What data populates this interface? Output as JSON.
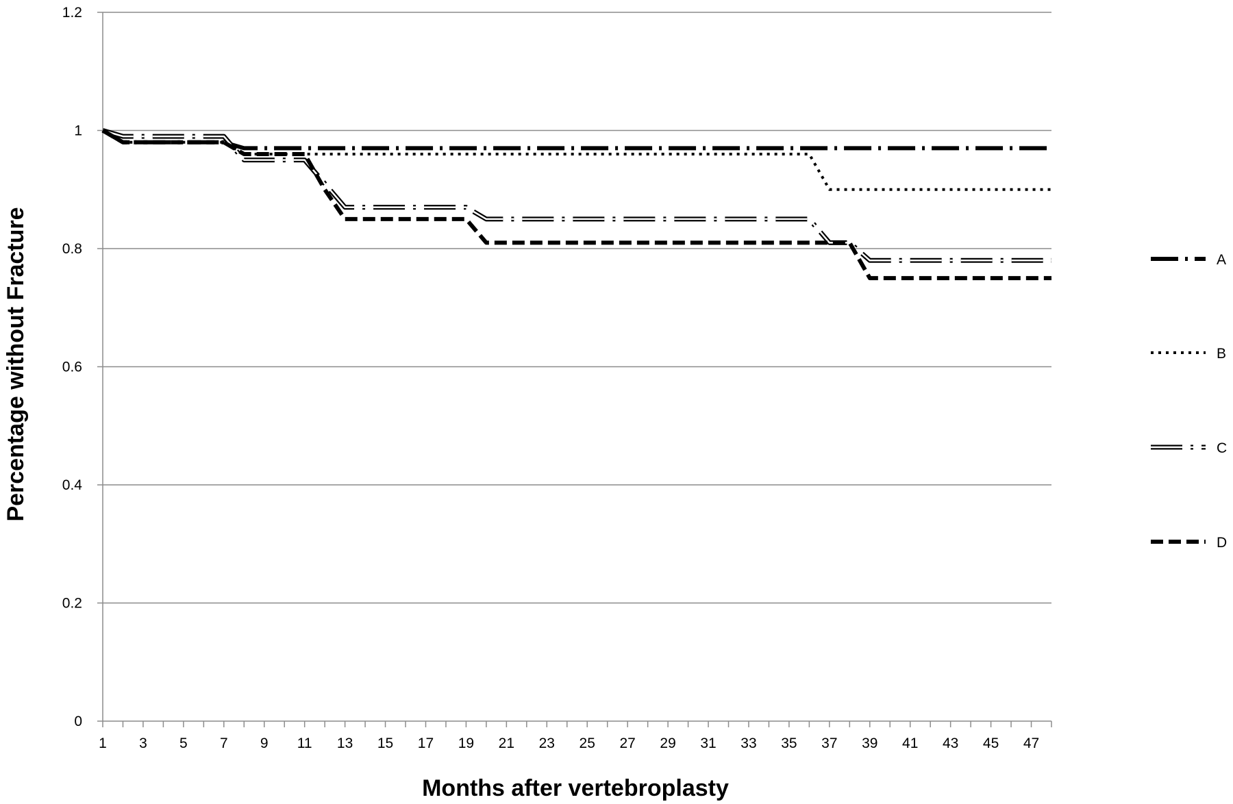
{
  "chart_data": {
    "type": "line",
    "title": "",
    "xlabel": "Months after vertebroplasty",
    "ylabel": "Percentage without  Fracture",
    "xlim": [
      1,
      48
    ],
    "ylim": [
      0,
      1.2
    ],
    "y_ticks": [
      0,
      0.2,
      0.4,
      0.6,
      0.8,
      1,
      1.2
    ],
    "y_tick_labels": [
      "0",
      "0.2",
      "0.4",
      "0.6",
      "0.8",
      "1",
      "1.2"
    ],
    "x_tick_labels": [
      1,
      3,
      5,
      7,
      9,
      11,
      13,
      15,
      17,
      19,
      21,
      23,
      25,
      27,
      29,
      31,
      33,
      35,
      37,
      39,
      41,
      43,
      45,
      47
    ],
    "grid": "horizontal",
    "legend_position": "right",
    "series": [
      {
        "name": "A",
        "style": "long-dash-dot",
        "x": [
          1,
          2,
          3,
          4,
          5,
          6,
          7,
          8,
          9,
          10,
          11,
          12,
          13,
          14,
          15,
          16,
          17,
          18,
          19,
          20,
          21,
          22,
          23,
          24,
          25,
          26,
          27,
          28,
          29,
          30,
          31,
          32,
          33,
          34,
          35,
          36,
          37,
          38,
          39,
          40,
          41,
          42,
          43,
          44,
          45,
          46,
          47,
          48
        ],
        "values": [
          1,
          0.98,
          0.98,
          0.98,
          0.98,
          0.98,
          0.98,
          0.97,
          0.97,
          0.97,
          0.97,
          0.97,
          0.97,
          0.97,
          0.97,
          0.97,
          0.97,
          0.97,
          0.97,
          0.97,
          0.97,
          0.97,
          0.97,
          0.97,
          0.97,
          0.97,
          0.97,
          0.97,
          0.97,
          0.97,
          0.97,
          0.97,
          0.97,
          0.97,
          0.97,
          0.97,
          0.97,
          0.97,
          0.97,
          0.97,
          0.97,
          0.97,
          0.97,
          0.97,
          0.97,
          0.97,
          0.97,
          0.97
        ]
      },
      {
        "name": "B",
        "style": "dotted",
        "x": [
          1,
          2,
          3,
          4,
          5,
          6,
          7,
          8,
          9,
          10,
          11,
          12,
          13,
          14,
          15,
          16,
          17,
          18,
          19,
          20,
          21,
          22,
          23,
          24,
          25,
          26,
          27,
          28,
          29,
          30,
          31,
          32,
          33,
          34,
          35,
          36,
          37,
          38,
          39,
          40,
          41,
          42,
          43,
          44,
          45,
          46,
          47,
          48
        ],
        "values": [
          1,
          0.98,
          0.98,
          0.98,
          0.98,
          0.98,
          0.98,
          0.96,
          0.96,
          0.96,
          0.96,
          0.96,
          0.96,
          0.96,
          0.96,
          0.96,
          0.96,
          0.96,
          0.96,
          0.96,
          0.96,
          0.96,
          0.96,
          0.96,
          0.96,
          0.96,
          0.96,
          0.96,
          0.96,
          0.96,
          0.96,
          0.96,
          0.96,
          0.96,
          0.96,
          0.96,
          0.9,
          0.9,
          0.9,
          0.9,
          0.9,
          0.9,
          0.9,
          0.9,
          0.9,
          0.9,
          0.9,
          0.9
        ]
      },
      {
        "name": "C",
        "style": "double-line-dash-dot",
        "x": [
          1,
          2,
          3,
          4,
          5,
          6,
          7,
          8,
          9,
          10,
          11,
          12,
          13,
          14,
          15,
          16,
          17,
          18,
          19,
          20,
          21,
          22,
          23,
          24,
          25,
          26,
          27,
          28,
          29,
          30,
          31,
          32,
          33,
          34,
          35,
          36,
          37,
          38,
          39,
          40,
          41,
          42,
          43,
          44,
          45,
          46,
          47,
          48
        ],
        "values": [
          1,
          0.99,
          0.99,
          0.99,
          0.99,
          0.99,
          0.99,
          0.95,
          0.95,
          0.95,
          0.95,
          0.91,
          0.87,
          0.87,
          0.87,
          0.87,
          0.87,
          0.87,
          0.87,
          0.85,
          0.85,
          0.85,
          0.85,
          0.85,
          0.85,
          0.85,
          0.85,
          0.85,
          0.85,
          0.85,
          0.85,
          0.85,
          0.85,
          0.85,
          0.85,
          0.85,
          0.81,
          0.81,
          0.78,
          0.78,
          0.78,
          0.78,
          0.78,
          0.78,
          0.78,
          0.78,
          0.78,
          0.78
        ]
      },
      {
        "name": "D",
        "style": "dashed",
        "x": [
          1,
          2,
          3,
          4,
          5,
          6,
          7,
          8,
          9,
          10,
          11,
          12,
          13,
          14,
          15,
          16,
          17,
          18,
          19,
          20,
          21,
          22,
          23,
          24,
          25,
          26,
          27,
          28,
          29,
          30,
          31,
          32,
          33,
          34,
          35,
          36,
          37,
          38,
          39,
          40,
          41,
          42,
          43,
          44,
          45,
          46,
          47,
          48
        ],
        "values": [
          1,
          0.98,
          0.98,
          0.98,
          0.98,
          0.98,
          0.98,
          0.96,
          0.96,
          0.96,
          0.96,
          0.9,
          0.85,
          0.85,
          0.85,
          0.85,
          0.85,
          0.85,
          0.85,
          0.81,
          0.81,
          0.81,
          0.81,
          0.81,
          0.81,
          0.81,
          0.81,
          0.81,
          0.81,
          0.81,
          0.81,
          0.81,
          0.81,
          0.81,
          0.81,
          0.81,
          0.81,
          0.81,
          0.75,
          0.75,
          0.75,
          0.75,
          0.75,
          0.75,
          0.75,
          0.75,
          0.75,
          0.75
        ]
      }
    ]
  }
}
